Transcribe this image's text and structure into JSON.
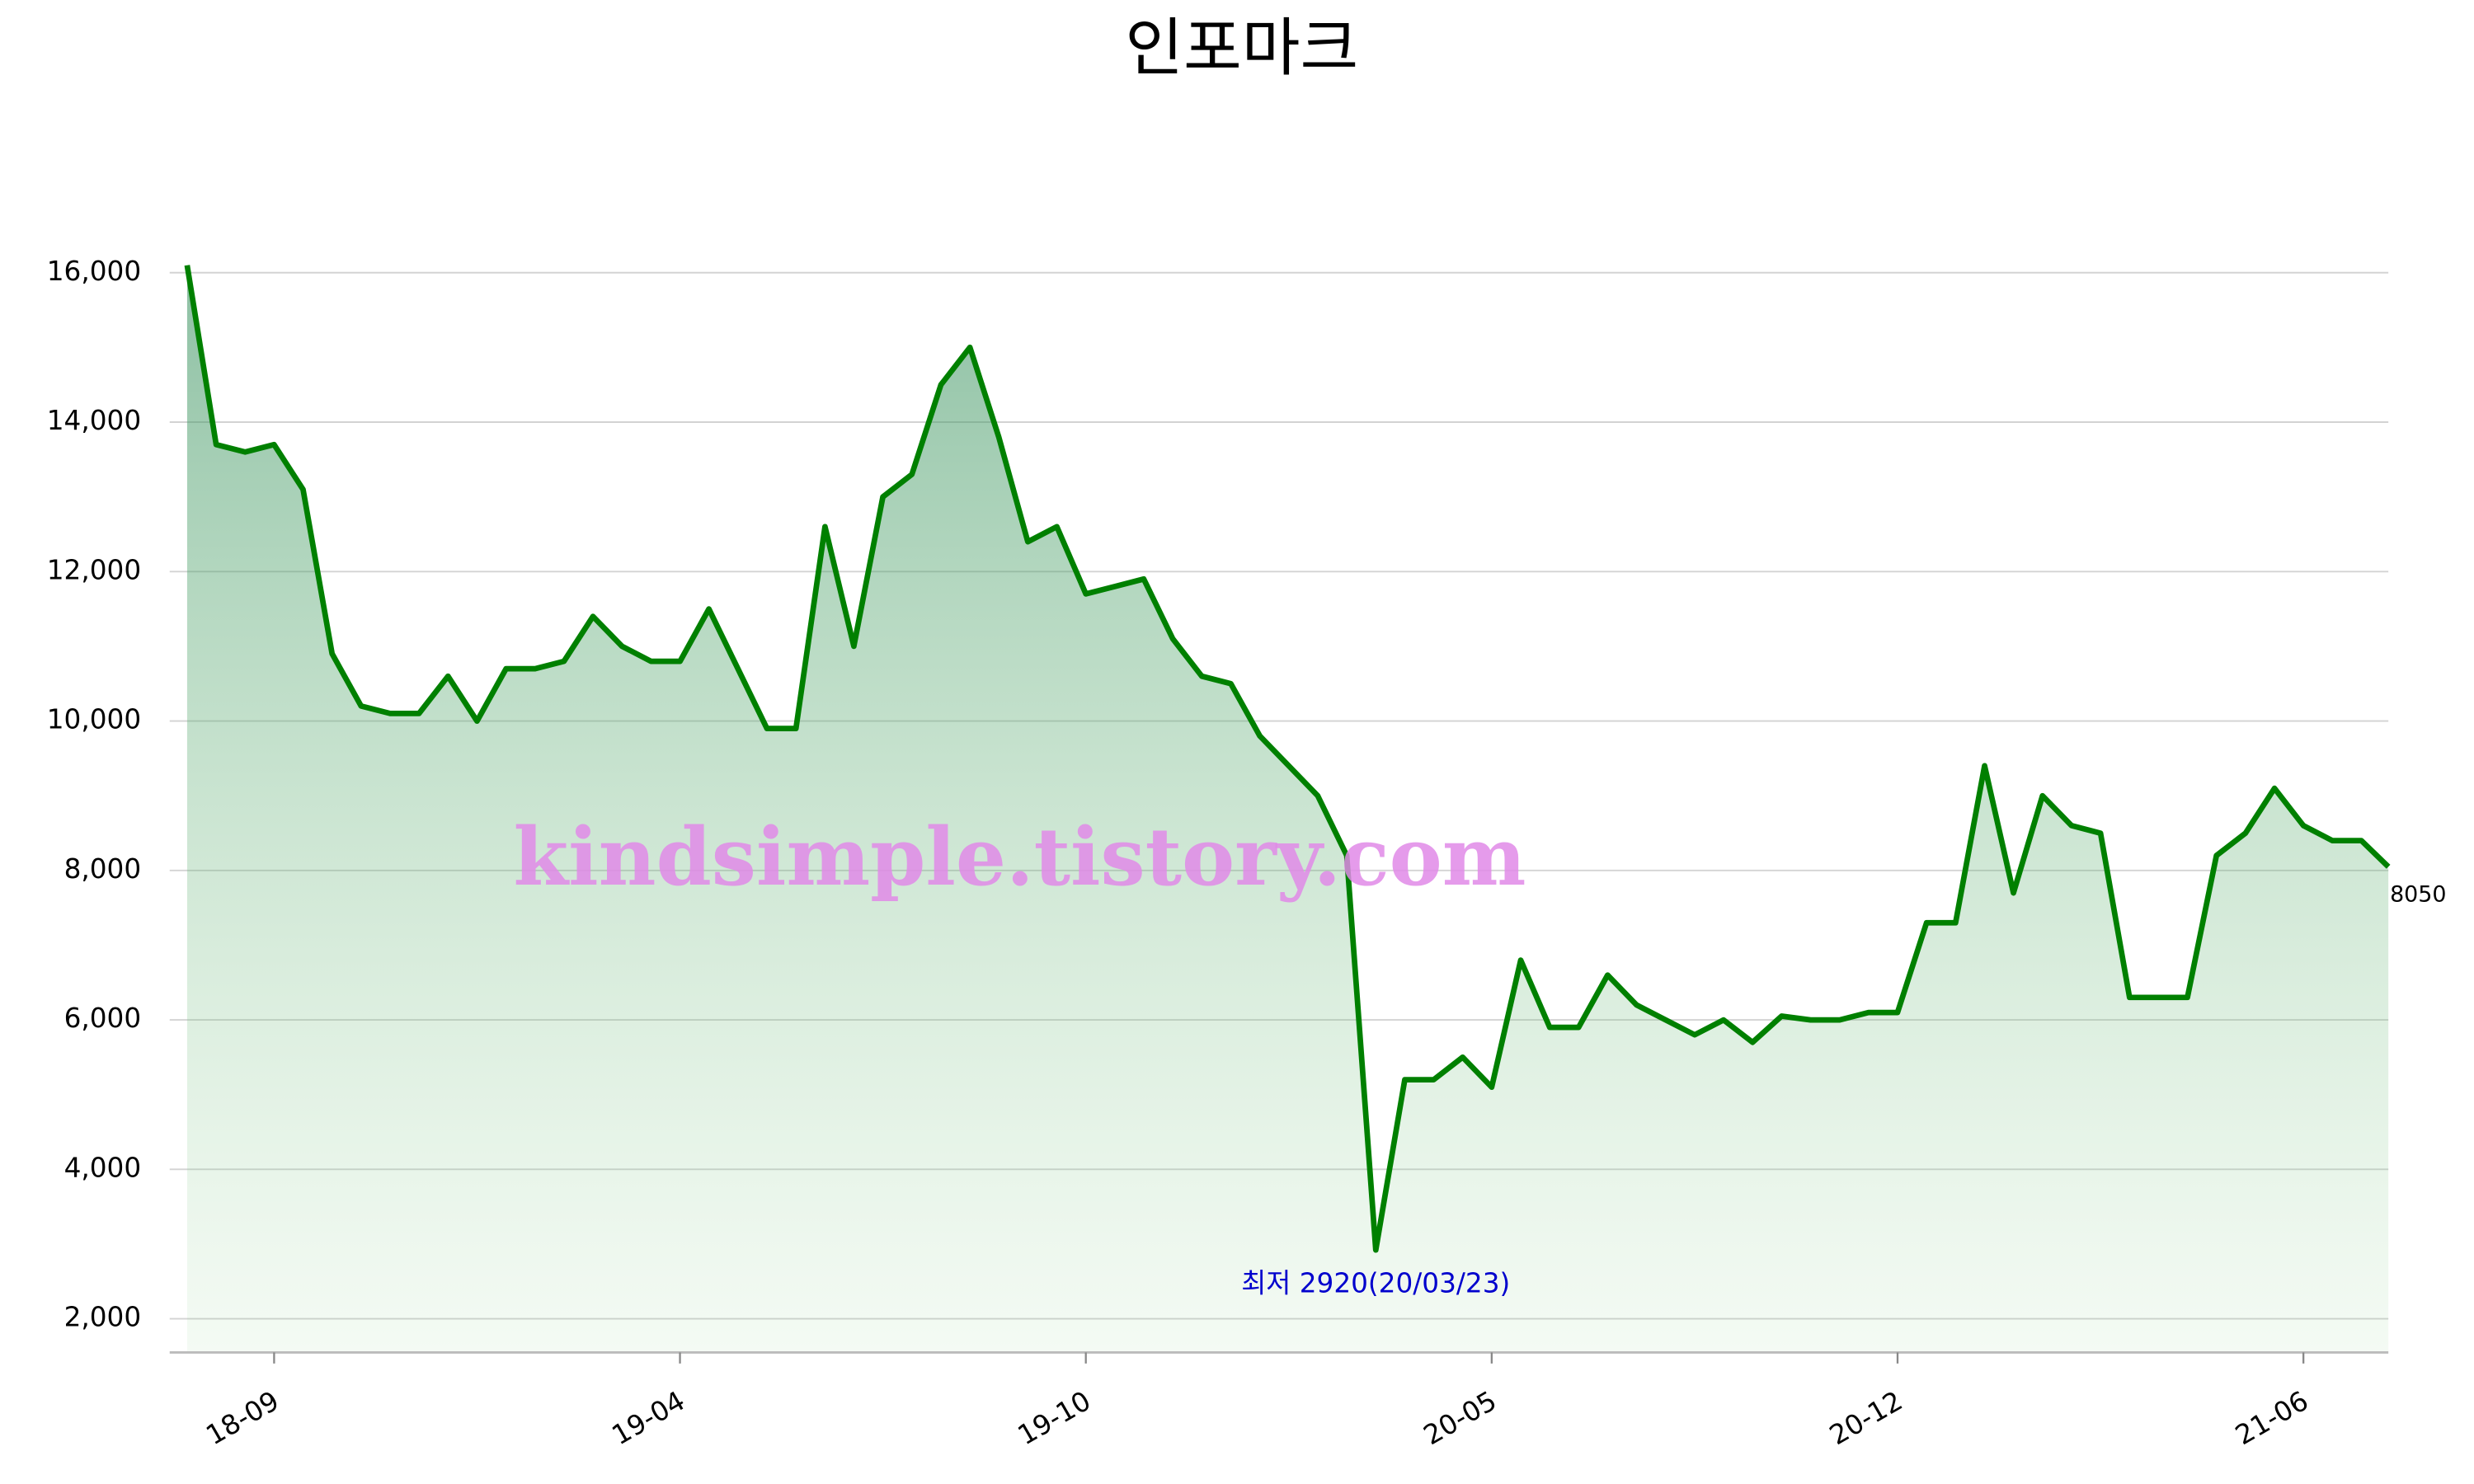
{
  "chart_data": {
    "type": "line",
    "title": "인포마크",
    "watermark": "kindsimple.tistory.com",
    "annotation": "최저 2920(20/03/23)",
    "color": "#008000",
    "categories": [
      null,
      null,
      null,
      "18-09",
      null,
      null,
      null,
      null,
      null,
      null,
      null,
      null,
      null,
      null,
      null,
      null,
      null,
      "19-04",
      null,
      null,
      null,
      null,
      null,
      null,
      null,
      null,
      null,
      null,
      null,
      null,
      null,
      "19-10",
      null,
      null,
      null,
      null,
      null,
      null,
      null,
      null,
      null,
      null,
      null,
      null,
      null,
      "20-05",
      null,
      null,
      null,
      null,
      null,
      null,
      null,
      null,
      null,
      null,
      null,
      null,
      null,
      "20-12",
      null,
      null,
      null,
      null,
      null,
      null,
      null,
      null,
      null,
      null,
      null,
      null,
      null,
      "21-06",
      null,
      null,
      null
    ],
    "values": [
      16100,
      13700,
      13600,
      13700,
      13100,
      10900,
      10200,
      10100,
      10100,
      10600,
      10000,
      10700,
      10700,
      10800,
      11400,
      11000,
      10800,
      10800,
      11500,
      10700,
      9900,
      9900,
      12600,
      11000,
      13000,
      13300,
      14500,
      15000,
      13800,
      12400,
      12600,
      11700,
      11800,
      11900,
      11100,
      10600,
      10500,
      9800,
      9400,
      9000,
      8200,
      2920,
      5200,
      5200,
      5500,
      5100,
      6800,
      5900,
      5900,
      6600,
      6200,
      6000,
      5800,
      6000,
      5700,
      6050,
      6000,
      6000,
      6100,
      6100,
      7300,
      7300,
      9400,
      7700,
      9000,
      8600,
      8500,
      6300,
      6300,
      6300,
      8200,
      8500,
      9100,
      8600,
      8400,
      8400,
      8050
    ],
    "ylim": [
      1550,
      16700
    ],
    "yticks": [
      {
        "value": 2000,
        "label": "2,000"
      },
      {
        "value": 4000,
        "label": "4,000"
      },
      {
        "value": 6000,
        "label": "6,000"
      },
      {
        "value": 8000,
        "label": "8,000"
      },
      {
        "value": 10000,
        "label": "10,000"
      },
      {
        "value": 12000,
        "label": "12,000"
      },
      {
        "value": 14000,
        "label": "14,000"
      },
      {
        "value": 16000,
        "label": "16,000"
      }
    ],
    "grid": true
  }
}
